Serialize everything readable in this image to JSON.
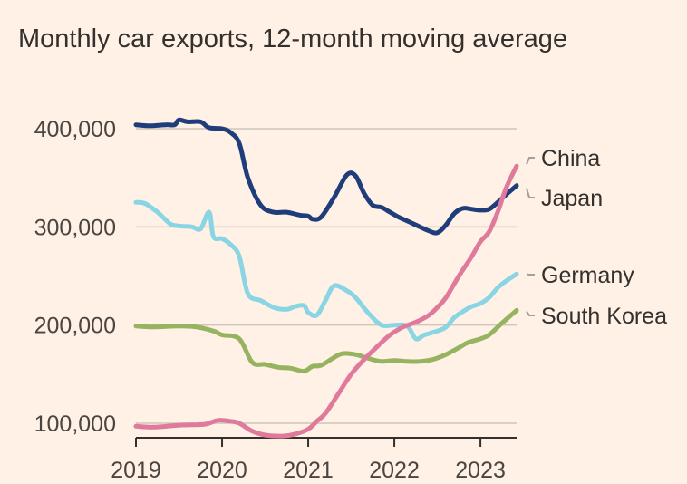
{
  "chart_data": {
    "type": "line",
    "title": "Monthly car exports, 12-month moving average",
    "xlabel": "",
    "ylabel": "",
    "xlim": [
      2019.0,
      2023.42
    ],
    "ylim": [
      92000,
      410000
    ],
    "y_ticks": [
      {
        "value": 100000,
        "label": "100,000"
      },
      {
        "value": 200000,
        "label": "200,000"
      },
      {
        "value": 300000,
        "label": "300,000"
      },
      {
        "value": 400000,
        "label": "400,000"
      }
    ],
    "x_ticks": [
      {
        "value": 2019,
        "label": "2019"
      },
      {
        "value": 2020,
        "label": "2020"
      },
      {
        "value": 2021,
        "label": "2021"
      },
      {
        "value": 2022,
        "label": "2022"
      },
      {
        "value": 2023,
        "label": "2023"
      }
    ],
    "grid": true,
    "legend": "right, labels at line ends",
    "series": [
      {
        "name": "Japan",
        "color": "#1f3d7a",
        "x": [
          2019.0,
          2019.15,
          2019.35,
          2019.45,
          2019.5,
          2019.6,
          2019.75,
          2019.85,
          2020.0,
          2020.1,
          2020.2,
          2020.3,
          2020.45,
          2020.6,
          2020.75,
          2020.9,
          2021.0,
          2021.05,
          2021.15,
          2021.3,
          2021.45,
          2021.55,
          2021.65,
          2021.75,
          2021.85,
          2021.95,
          2022.05,
          2022.15,
          2022.25,
          2022.4,
          2022.5,
          2022.6,
          2022.7,
          2022.8,
          2022.9,
          2023.0,
          2023.1,
          2023.2,
          2023.3,
          2023.42
        ],
        "y": [
          404000,
          403000,
          404000,
          404000,
          409000,
          407000,
          407000,
          401000,
          400000,
          396000,
          385000,
          350000,
          322000,
          315000,
          315000,
          312000,
          311000,
          308000,
          310000,
          330000,
          353000,
          352000,
          334000,
          322000,
          320000,
          315000,
          310000,
          306000,
          302000,
          296000,
          294000,
          302000,
          314000,
          319000,
          318000,
          317000,
          318000,
          325000,
          333000,
          342000
        ]
      },
      {
        "name": "Germany",
        "color": "#89d5e4",
        "x": [
          2019.0,
          2019.1,
          2019.25,
          2019.4,
          2019.5,
          2019.65,
          2019.75,
          2019.85,
          2019.9,
          2020.0,
          2020.1,
          2020.2,
          2020.3,
          2020.45,
          2020.6,
          2020.75,
          2020.85,
          2020.95,
          2021.0,
          2021.1,
          2021.2,
          2021.3,
          2021.45,
          2021.55,
          2021.7,
          2021.85,
          2022.0,
          2022.15,
          2022.25,
          2022.35,
          2022.5,
          2022.6,
          2022.7,
          2022.8,
          2022.9,
          2023.0,
          2023.1,
          2023.2,
          2023.3,
          2023.42
        ],
        "y": [
          325000,
          324000,
          315000,
          303000,
          301000,
          300000,
          298000,
          315000,
          290000,
          288000,
          282000,
          270000,
          232000,
          225000,
          218000,
          216000,
          219000,
          220000,
          213000,
          210000,
          225000,
          240000,
          235000,
          228000,
          212000,
          200000,
          200000,
          199000,
          186000,
          190000,
          194000,
          198000,
          208000,
          214000,
          219000,
          222000,
          228000,
          238000,
          245000,
          252000
        ]
      },
      {
        "name": "South Korea",
        "color": "#96b35f",
        "x": [
          2019.0,
          2019.2,
          2019.5,
          2019.7,
          2019.9,
          2020.0,
          2020.2,
          2020.35,
          2020.5,
          2020.65,
          2020.8,
          2020.95,
          2021.05,
          2021.15,
          2021.3,
          2021.4,
          2021.55,
          2021.7,
          2021.85,
          2022.0,
          2022.15,
          2022.3,
          2022.45,
          2022.6,
          2022.75,
          2022.85,
          2023.0,
          2023.1,
          2023.25,
          2023.42
        ],
        "y": [
          199000,
          198000,
          199000,
          198000,
          194000,
          190000,
          186000,
          162000,
          160000,
          157000,
          156000,
          153000,
          158000,
          159000,
          167000,
          171000,
          170000,
          166000,
          163000,
          164000,
          163000,
          163000,
          165000,
          170000,
          177000,
          182000,
          186000,
          190000,
          202000,
          215000
        ]
      },
      {
        "name": "China",
        "color": "#e07a9c",
        "x": [
          2019.0,
          2019.2,
          2019.5,
          2019.8,
          2019.95,
          2020.1,
          2020.2,
          2020.35,
          2020.5,
          2020.7,
          2020.85,
          2021.0,
          2021.1,
          2021.2,
          2021.35,
          2021.5,
          2021.65,
          2021.8,
          2021.95,
          2022.1,
          2022.25,
          2022.4,
          2022.5,
          2022.6,
          2022.75,
          2022.9,
          2023.0,
          2023.1,
          2023.2,
          2023.3,
          2023.42
        ],
        "y": [
          97000,
          96000,
          98000,
          99000,
          103000,
          102000,
          100000,
          92000,
          88000,
          87000,
          89000,
          94000,
          102000,
          110000,
          130000,
          150000,
          165000,
          178000,
          190000,
          198000,
          203000,
          210000,
          218000,
          228000,
          250000,
          270000,
          285000,
          295000,
          315000,
          340000,
          362000
        ]
      }
    ],
    "labels": [
      {
        "series": "China",
        "text": "China"
      },
      {
        "series": "Japan",
        "text": "Japan"
      },
      {
        "series": "Germany",
        "text": "Germany"
      },
      {
        "series": "South Korea",
        "text": "South Korea"
      }
    ]
  }
}
